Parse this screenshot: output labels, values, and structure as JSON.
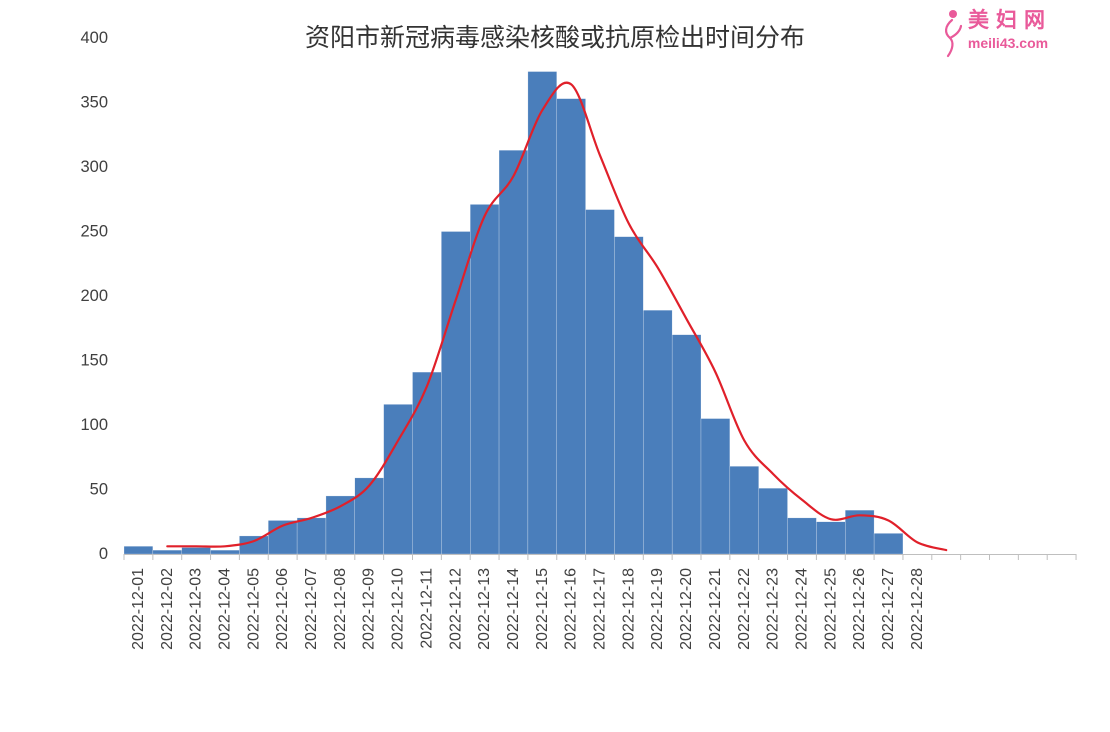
{
  "watermark": {
    "brand": "美妇网",
    "site": "meili43.com",
    "logo_icon": "woman-silhouette-icon",
    "color": "#e95a9a"
  },
  "chart_data": {
    "type": "bar",
    "title": "资阳市新冠病毒感染核酸或抗原检出时间分布",
    "xlabel": "",
    "ylabel": "",
    "categories": [
      "2022-12-01",
      "2022-12-02",
      "2022-12-03",
      "2022-12-04",
      "2022-12-05",
      "2022-12-06",
      "2022-12-07",
      "2022-12-08",
      "2022-12-09",
      "2022-12-10",
      "2022-12-11",
      "2022-12-12",
      "2022-12-13",
      "2022-12-14",
      "2022-12-15",
      "2022-12-16",
      "2022-12-17",
      "2022-12-18",
      "2022-12-19",
      "2022-12-20",
      "2022-12-21",
      "2022-12-22",
      "2022-12-23",
      "2022-12-24",
      "2022-12-25",
      "2022-12-26",
      "2022-12-27",
      "2022-12-28"
    ],
    "series": [
      {
        "type": "bar",
        "color": "#4a7ebb",
        "values": [
          6,
          3,
          5,
          3,
          14,
          26,
          28,
          45,
          59,
          116,
          141,
          250,
          271,
          313,
          374,
          353,
          267,
          246,
          189,
          170,
          105,
          68,
          51,
          28,
          25,
          34,
          16,
          0
        ]
      },
      {
        "type": "line",
        "color": "#e0202a",
        "x": [
          "2022-12-02",
          "2022-12-03",
          "2022-12-04",
          "2022-12-05",
          "2022-12-06",
          "2022-12-07",
          "2022-12-08",
          "2022-12-09",
          "2022-12-10",
          "2022-12-11",
          "2022-12-12",
          "2022-12-13",
          "2022-12-14",
          "2022-12-15",
          "2022-12-16",
          "2022-12-17",
          "2022-12-18",
          "2022-12-19",
          "2022-12-20",
          "2022-12-21",
          "2022-12-22",
          "2022-12-23",
          "2022-12-24",
          "2022-12-25",
          "2022-12-26",
          "2022-12-27",
          "2022-12-28",
          "2022-12-29"
        ],
        "values": [
          6,
          6,
          6,
          10,
          22,
          28,
          37,
          53,
          88,
          130,
          197,
          262,
          293,
          344,
          364,
          309,
          256,
          222,
          182,
          141,
          88,
          62,
          42,
          27,
          30,
          26,
          9,
          3
        ]
      }
    ],
    "ylim": [
      0,
      400
    ],
    "yticks": [
      0,
      50,
      100,
      150,
      200,
      250,
      300,
      350,
      400
    ],
    "grid": false,
    "legend": "none"
  }
}
